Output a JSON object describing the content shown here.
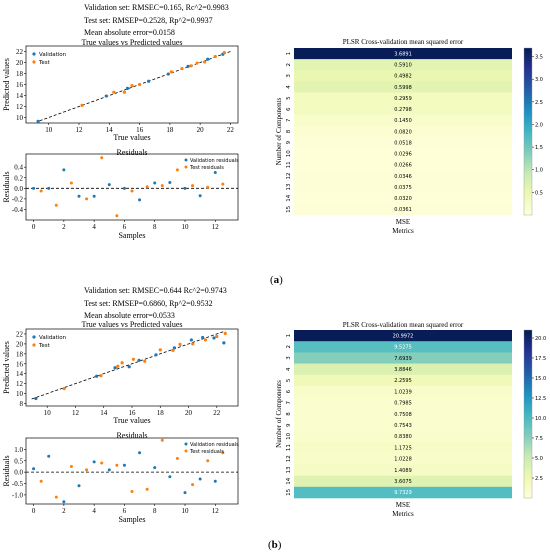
{
  "panels": [
    {
      "id": "a",
      "label": "(a)",
      "metrics": [
        "Validation set: RMSEC=0.165, Rc^2=0.9983",
        "Test set: RMSEP=0.2528, Rp^2=0.9937",
        "Mean absolute error=0.0158"
      ],
      "scatter": {
        "title": "True values vs Predicted values",
        "xlabel": "True values",
        "ylabel": "Predicted values",
        "xlim": [
          8.5,
          22.5
        ],
        "ylim": [
          9,
          23
        ],
        "xticks": [
          "10",
          "12",
          "14",
          "16",
          "18",
          "20",
          "22"
        ],
        "yticks": [
          "10",
          "12",
          "14",
          "16",
          "18",
          "20",
          "22"
        ],
        "legend": [
          "Validation",
          "Test"
        ],
        "validation": [
          [
            9.3,
            9.3
          ],
          [
            13.8,
            13.9
          ],
          [
            15.2,
            15.3
          ],
          [
            16.6,
            16.6
          ],
          [
            17.9,
            17.9
          ],
          [
            19.2,
            19.3
          ],
          [
            20.5,
            20.6
          ],
          [
            21.5,
            21.5
          ]
        ],
        "test": [
          [
            12.2,
            12.2
          ],
          [
            14.3,
            14.6
          ],
          [
            15.0,
            14.6
          ],
          [
            15.5,
            15.8
          ],
          [
            16.0,
            16.0
          ],
          [
            18.1,
            18.3
          ],
          [
            18.8,
            18.9
          ],
          [
            19.4,
            19.4
          ],
          [
            19.8,
            19.9
          ],
          [
            20.3,
            20.1
          ],
          [
            21.0,
            21.1
          ],
          [
            21.6,
            21.8
          ]
        ]
      },
      "residuals": {
        "title": "Residuals",
        "xlabel": "Samples",
        "ylabel": "Residuals",
        "xlim": [
          -0.5,
          13.5
        ],
        "ylim": [
          -0.6,
          0.65
        ],
        "xticks": [
          0,
          2,
          4,
          6,
          8,
          10,
          12
        ],
        "yticks": [
          "-0.4",
          "-0.2",
          "0.0",
          "0.2",
          "0.4"
        ],
        "ytick_values": [
          -0.4,
          -0.2,
          0.0,
          0.2,
          0.4
        ],
        "legend": [
          "Validation residuals",
          "Test residuals"
        ],
        "validation": [
          0.0,
          0.0,
          0.35,
          -0.15,
          -0.15,
          0.07,
          0.0,
          -0.22,
          0.1,
          0.11,
          0.0,
          -0.14,
          0.3
        ],
        "test": [
          -0.05,
          -0.32,
          0.1,
          -0.2,
          0.58,
          -0.52,
          -0.05,
          0.03,
          0.05,
          0.35,
          0.05,
          0.02,
          0.08
        ]
      },
      "heatmap": {
        "title": "PLSR Cross-validation mean squared error",
        "column": "MSE",
        "xlabel": "Metrics",
        "ylabel": "Number of Components",
        "rows": [
          "1",
          "2",
          "3",
          "4",
          "5",
          "6",
          "7",
          "8",
          "9",
          "10",
          "11",
          "12",
          "13",
          "14",
          "15"
        ],
        "values": [
          "3.6891",
          "0.5910",
          "0.4982",
          "0.5998",
          "0.2959",
          "0.2798",
          "0.1450",
          "0.0820",
          "0.0518",
          "0.0296",
          "0.0266",
          "0.0346",
          "0.0375",
          "0.0320",
          "0.0361"
        ],
        "vmax": 3.6891,
        "cbar_ticks": [
          "0.5",
          "1.0",
          "1.5",
          "2.0",
          "2.5",
          "3.0",
          "3.5"
        ],
        "cbar_values": [
          0.5,
          1.0,
          1.5,
          2.0,
          2.5,
          3.0,
          3.5
        ]
      }
    },
    {
      "id": "b",
      "label": "(b)",
      "metrics": [
        "Validation set: RMSEC=0.644  Rc^2=0.9743",
        "Test set: RMSEP=0.6860, Rp^2=0.9532",
        "Mean absolute error=0.0533"
      ],
      "scatter": {
        "title": "True values vs Predicted values",
        "xlabel": "True values",
        "ylabel": "Predicted values",
        "xlim": [
          8.5,
          23.5
        ],
        "ylim": [
          7.5,
          23
        ],
        "xticks": [
          "10",
          "12",
          "14",
          "16",
          "18",
          "20",
          "22"
        ],
        "yticks": [
          "8",
          "10",
          "12",
          "14",
          "16",
          "18",
          "20",
          "22"
        ],
        "legend": [
          "Validation",
          "Test"
        ],
        "validation": [
          [
            9.2,
            9.0
          ],
          [
            13.5,
            13.5
          ],
          [
            14.8,
            15.2
          ],
          [
            15.8,
            15.4
          ],
          [
            16.5,
            16.7
          ],
          [
            17.7,
            17.8
          ],
          [
            19.0,
            19.2
          ],
          [
            20.2,
            20.8
          ],
          [
            21.0,
            21.3
          ],
          [
            21.8,
            21.2
          ],
          [
            22.5,
            20.2
          ]
        ],
        "test": [
          [
            11.2,
            11.0
          ],
          [
            13.8,
            13.6
          ],
          [
            15.0,
            15.5
          ],
          [
            15.3,
            16.2
          ],
          [
            16.1,
            16.9
          ],
          [
            16.9,
            16.5
          ],
          [
            18.0,
            18.8
          ],
          [
            18.9,
            18.7
          ],
          [
            19.4,
            19.9
          ],
          [
            20.3,
            20.0
          ],
          [
            21.2,
            20.8
          ],
          [
            22.0,
            21.5
          ],
          [
            22.6,
            22.1
          ]
        ]
      },
      "residuals": {
        "title": "Residuals",
        "xlabel": "Samples",
        "ylabel": "Residuals",
        "xlim": [
          -0.5,
          13.5
        ],
        "ylim": [
          -1.4,
          1.5
        ],
        "xticks": [
          0,
          2,
          4,
          6,
          8,
          10,
          12
        ],
        "yticks": [
          "-1.0",
          "-0.5",
          "0.0",
          "0.5",
          "1.0"
        ],
        "ytick_values": [
          -1.0,
          -0.5,
          0.0,
          0.5,
          1.0
        ],
        "legend": [
          "Validation residuals",
          "Test residuals"
        ],
        "validation": [
          0.15,
          0.7,
          -1.3,
          -0.6,
          0.45,
          0.1,
          0.3,
          0.85,
          0.2,
          -0.2,
          -0.9,
          -0.3,
          -0.4
        ],
        "test": [
          -0.4,
          -1.1,
          0.25,
          0.1,
          0.4,
          0.3,
          -0.85,
          -0.75,
          1.4,
          0.6,
          -0.55,
          0.5,
          0.85
        ]
      },
      "heatmap": {
        "title": "PLSR Cross-validation mean squared error",
        "column": "MSE",
        "xlabel": "Metrics",
        "ylabel": "Number of Components",
        "rows": [
          "1",
          "2",
          "3",
          "4",
          "5",
          "6",
          "7",
          "8",
          "9",
          "10",
          "11",
          "12",
          "13",
          "14",
          "15"
        ],
        "values": [
          "20.9972",
          "9.5275",
          "7.6939",
          "3.8846",
          "2.2595",
          "1.0239",
          "0.7985",
          "0.7508",
          "0.7543",
          "0.8380",
          "1.1725",
          "1.0228",
          "1.4089",
          "3.6075",
          "9.7329"
        ],
        "vmax": 20.9972,
        "cbar_ticks": [
          "2.5",
          "5.0",
          "7.5",
          "10.0",
          "12.5",
          "15.0",
          "17.5",
          "20.0"
        ],
        "cbar_values": [
          2.5,
          5.0,
          7.5,
          10.0,
          12.5,
          15.0,
          17.5,
          20.0
        ]
      }
    }
  ],
  "colors": {
    "validation": "#1f77b4",
    "test": "#ff7f0e"
  }
}
